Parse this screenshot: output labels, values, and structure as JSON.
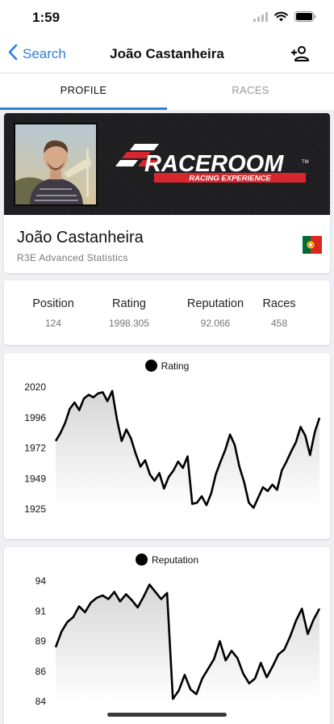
{
  "status_bar": {
    "time": "1:59"
  },
  "nav": {
    "back_label": "Search",
    "title": "João Castanheira"
  },
  "tabs": [
    {
      "label": "PROFILE"
    },
    {
      "label": "RACES"
    }
  ],
  "profile": {
    "name": "João Castanheira",
    "subtitle": "R3E Advanced Statistics",
    "logo_main": "RACEROOM",
    "logo_tm": "TM",
    "logo_sub": "RACING EXPERIENCE",
    "flag": "portugal-flag"
  },
  "stats": [
    {
      "label": "Position",
      "value": "124"
    },
    {
      "label": "Rating",
      "value": "1998.305"
    },
    {
      "label": "Reputation",
      "value": "92.066"
    },
    {
      "label": "Races",
      "value": "458"
    }
  ],
  "colors": {
    "accent": "#2f7fe0",
    "line": "#000000"
  },
  "chart_data": [
    {
      "type": "area",
      "legend": "Rating",
      "yticks": [
        "2020",
        "1996",
        "1972",
        "1949",
        "1925"
      ],
      "ylim": [
        1925,
        2020
      ],
      "values": [
        1978,
        1984,
        1992,
        2003,
        2008,
        2002,
        2011,
        2014,
        2012,
        2015,
        2016,
        2009,
        2017,
        1995,
        1978,
        1987,
        1980,
        1968,
        1958,
        1963,
        1952,
        1947,
        1953,
        1941,
        1950,
        1955,
        1962,
        1957,
        1966,
        1929,
        1930,
        1935,
        1928,
        1937,
        1952,
        1962,
        1971,
        1983,
        1975,
        1958,
        1946,
        1930,
        1926,
        1934,
        1942,
        1939,
        1944,
        1940,
        1955,
        1962,
        1970,
        1977,
        1989,
        1982,
        1967,
        1985,
        1996
      ]
    },
    {
      "type": "area",
      "legend": "Reputation",
      "yticks": [
        "94",
        "91",
        "89",
        "86",
        "84"
      ],
      "ylim": [
        84,
        94
      ],
      "values": [
        88.5,
        89.8,
        90.6,
        91.0,
        91.9,
        91.4,
        92.2,
        92.6,
        92.8,
        92.5,
        93.1,
        92.3,
        92.9,
        92.4,
        91.8,
        92.7,
        93.7,
        93.1,
        92.5,
        93.0,
        84.2,
        84.9,
        86.2,
        85.0,
        84.6,
        85.9,
        86.7,
        87.5,
        89.0,
        87.4,
        88.2,
        87.6,
        86.3,
        85.5,
        85.9,
        87.2,
        86.0,
        86.9,
        87.9,
        88.3,
        89.4,
        90.7,
        91.7,
        89.6,
        90.8,
        91.7
      ]
    }
  ]
}
